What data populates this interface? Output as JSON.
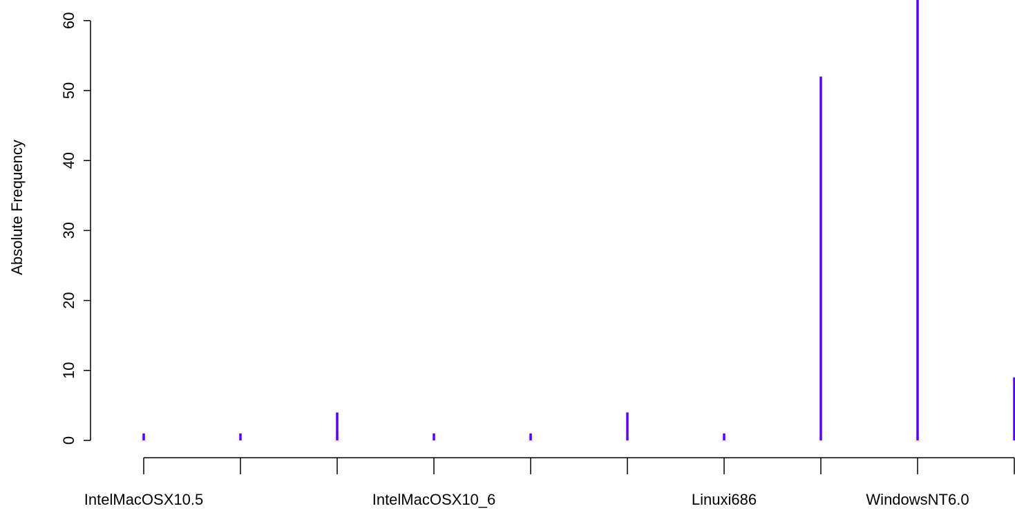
{
  "chart_data": {
    "type": "bar",
    "ylabel": "Absolute Frequency",
    "xlabel": "",
    "title": "",
    "ylim": [
      0,
      63
    ],
    "yticks": [
      0,
      10,
      20,
      30,
      40,
      50,
      60
    ],
    "categories": [
      "IntelMacOSX10.5",
      "",
      "",
      "IntelMacOSX10_6",
      "",
      "",
      "Linuxi686",
      "",
      "WindowsNT6.0",
      ""
    ],
    "values": [
      1,
      1,
      4,
      1,
      1,
      4,
      1,
      52,
      63,
      9
    ],
    "bar_color": "#5b00ff",
    "grid": false,
    "legend": "none"
  }
}
